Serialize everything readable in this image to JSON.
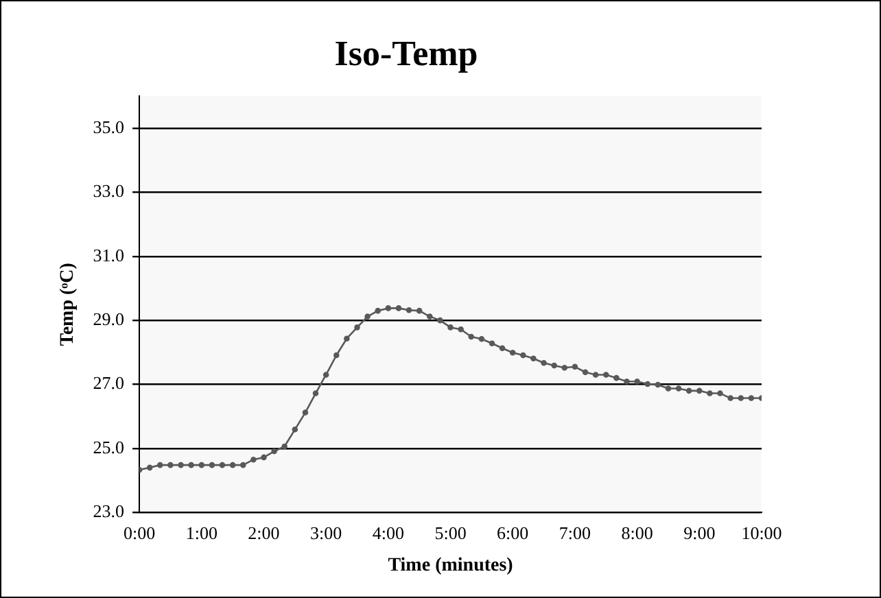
{
  "chart_data": {
    "type": "line",
    "title": "Iso-Temp",
    "xlabel": "Time (minutes)",
    "ylabel": "Temp (ᵒC)",
    "x": [
      0,
      0.167,
      0.333,
      0.5,
      0.667,
      0.833,
      1,
      1.167,
      1.333,
      1.5,
      1.667,
      1.833,
      2,
      2.167,
      2.333,
      2.5,
      2.667,
      2.833,
      3,
      3.167,
      3.333,
      3.5,
      3.667,
      3.833,
      4,
      4.167,
      4.333,
      4.5,
      4.667,
      4.833,
      5,
      5.167,
      5.333,
      5.5,
      5.667,
      5.833,
      6,
      6.167,
      6.333,
      6.5,
      6.667,
      6.833,
      7,
      7.167,
      7.333,
      7.5,
      7.667,
      7.833,
      8,
      8.167,
      8.333,
      8.5,
      8.667,
      8.833,
      9,
      9.167,
      9.333,
      9.5,
      9.667,
      9.833,
      10
    ],
    "series": [
      {
        "color": "#595959",
        "values": [
          24.33,
          24.4,
          24.48,
          24.48,
          24.48,
          24.48,
          24.48,
          24.48,
          24.48,
          24.48,
          24.48,
          24.65,
          24.72,
          24.91,
          25.06,
          25.59,
          26.12,
          26.72,
          27.3,
          27.91,
          28.43,
          28.78,
          29.12,
          29.3,
          29.38,
          29.38,
          29.32,
          29.3,
          29.12,
          29.0,
          28.78,
          28.72,
          28.49,
          28.42,
          28.28,
          28.13,
          27.99,
          27.91,
          27.81,
          27.67,
          27.59,
          27.52,
          27.55,
          27.38,
          27.3,
          27.3,
          27.2,
          27.09,
          27.09,
          27.01,
          26.99,
          26.87,
          26.87,
          26.8,
          26.8,
          26.72,
          26.72,
          26.57,
          26.57,
          26.57,
          26.57
        ]
      }
    ],
    "xlim": [
      0,
      10
    ],
    "xticks": [
      {
        "value": 0,
        "label": "0:00"
      },
      {
        "value": 1,
        "label": "1:00"
      },
      {
        "value": 2,
        "label": "2:00"
      },
      {
        "value": 3,
        "label": "3:00"
      },
      {
        "value": 4,
        "label": "4:00"
      },
      {
        "value": 5,
        "label": "5:00"
      },
      {
        "value": 6,
        "label": "6:00"
      },
      {
        "value": 7,
        "label": "7:00"
      },
      {
        "value": 8,
        "label": "8:00"
      },
      {
        "value": 9,
        "label": "9:00"
      },
      {
        "value": 10,
        "label": "10:00"
      }
    ],
    "ylim": [
      23,
      36
    ],
    "yticks": [
      {
        "value": 23,
        "label": "23.0"
      },
      {
        "value": 25,
        "label": "25.0"
      },
      {
        "value": 27,
        "label": "27.0"
      },
      {
        "value": 29,
        "label": "29.0"
      },
      {
        "value": 31,
        "label": "31.0"
      },
      {
        "value": 33,
        "label": "33.0"
      },
      {
        "value": 35,
        "label": "35.0"
      }
    ],
    "grid": "y",
    "legend": false,
    "marker": "circle",
    "line_style": "solid"
  }
}
